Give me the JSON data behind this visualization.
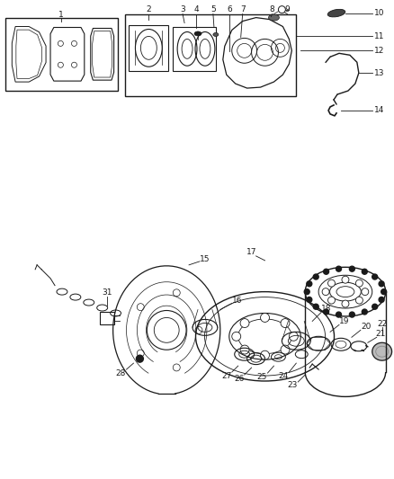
{
  "background_color": "#ffffff",
  "fig_width": 4.38,
  "fig_height": 5.33,
  "dpi": 100,
  "line_color": "#1a1a1a",
  "gray": "#888888",
  "dark": "#333333"
}
